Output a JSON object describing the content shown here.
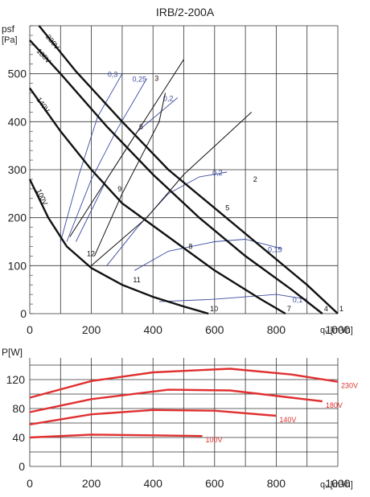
{
  "chart_data": [
    {
      "type": "line",
      "title": "IRB/2-200A",
      "ylabel_line1": "psf",
      "ylabel_line2": "[Pa]",
      "xlabel": "qᵥ [m³/h]",
      "xlim": [
        0,
        1000
      ],
      "ylim": [
        0,
        600
      ],
      "x_ticks": [
        "0",
        "200",
        "400",
        "600",
        "800",
        "1000"
      ],
      "y_ticks": [
        "0",
        "100",
        "200",
        "300",
        "400",
        "500"
      ],
      "grid": true,
      "series": [
        {
          "name": "230V",
          "points": [
            [
              30,
              600
            ],
            [
              150,
              505
            ],
            [
              300,
              400
            ],
            [
              450,
              300
            ],
            [
              600,
              220
            ],
            [
              750,
              140
            ],
            [
              900,
              60
            ],
            [
              1000,
              0
            ]
          ]
        },
        {
          "name": "180V",
          "points": [
            [
              0,
              570
            ],
            [
              100,
              500
            ],
            [
              250,
              390
            ],
            [
              400,
              290
            ],
            [
              550,
              200
            ],
            [
              700,
              120
            ],
            [
              850,
              50
            ],
            [
              950,
              0
            ]
          ]
        },
        {
          "name": "140V",
          "points": [
            [
              0,
              470
            ],
            [
              100,
              380
            ],
            [
              200,
              300
            ],
            [
              300,
              230
            ],
            [
              450,
              160
            ],
            [
              600,
              90
            ],
            [
              750,
              30
            ],
            [
              830,
              0
            ]
          ]
        },
        {
          "name": "100V",
          "points": [
            [
              0,
              280
            ],
            [
              60,
              200
            ],
            [
              120,
              140
            ],
            [
              200,
              95
            ],
            [
              300,
              60
            ],
            [
              400,
              35
            ],
            [
              500,
              15
            ],
            [
              580,
              0
            ]
          ]
        }
      ],
      "efficiency_curves": [
        {
          "label": "0,1",
          "points": [
            [
              420,
              25
            ],
            [
              600,
              30
            ],
            [
              800,
              40
            ],
            [
              900,
              30
            ]
          ]
        },
        {
          "label": "0,15",
          "points": [
            [
              340,
              90
            ],
            [
              450,
              130
            ],
            [
              600,
              150
            ],
            [
              700,
              155
            ],
            [
              820,
              135
            ]
          ]
        },
        {
          "label": "0,2",
          "points": [
            [
              250,
              100
            ],
            [
              350,
              180
            ],
            [
              450,
              250
            ],
            [
              550,
              285
            ],
            [
              640,
              295
            ]
          ]
        },
        {
          "label": "0,2",
          "points": [
            [
              150,
              150
            ],
            [
              250,
              280
            ],
            [
              350,
              380
            ],
            [
              480,
              450
            ]
          ]
        },
        {
          "label": "0,25",
          "points": [
            [
              120,
              150
            ],
            [
              200,
              280
            ],
            [
              280,
              380
            ],
            [
              380,
              490
            ]
          ]
        },
        {
          "label": "0,3",
          "points": [
            [
              100,
              150
            ],
            [
              160,
              290
            ],
            [
              220,
              410
            ],
            [
              300,
              500
            ]
          ]
        }
      ],
      "system_lines": [
        {
          "points": [
            [
              200,
              100
            ],
            [
              380,
              200
            ],
            [
              500,
              290
            ],
            [
              720,
              420
            ]
          ]
        },
        {
          "points": [
            [
              130,
              160
            ],
            [
              300,
              330
            ],
            [
              440,
              470
            ],
            [
              500,
              530
            ]
          ]
        },
        {
          "points": [
            [
              210,
              120
            ],
            [
              300,
              250
            ],
            [
              420,
              400
            ],
            [
              440,
              460
            ]
          ]
        }
      ],
      "points": [
        {
          "label": "1",
          "x": 1000,
          "y": 0
        },
        {
          "label": "2",
          "x": 720,
          "y": 270
        },
        {
          "label": "3",
          "x": 400,
          "y": 480
        },
        {
          "label": "4",
          "x": 950,
          "y": 0
        },
        {
          "label": "5",
          "x": 630,
          "y": 210
        },
        {
          "label": "6",
          "x": 350,
          "y": 380
        },
        {
          "label": "7",
          "x": 830,
          "y": 0
        },
        {
          "label": "8",
          "x": 510,
          "y": 130
        },
        {
          "label": "9",
          "x": 280,
          "y": 250
        },
        {
          "label": "10",
          "x": 580,
          "y": 0
        },
        {
          "label": "11",
          "x": 330,
          "y": 60
        },
        {
          "label": "12",
          "x": 180,
          "y": 115
        }
      ]
    },
    {
      "type": "line",
      "ylabel": "P[W]",
      "xlabel": "qᵥ [m³/h]",
      "xlim": [
        0,
        1000
      ],
      "ylim": [
        0,
        150
      ],
      "x_ticks": [
        "0",
        "200",
        "400",
        "600",
        "800",
        "1000"
      ],
      "y_ticks": [
        "0",
        "40",
        "80",
        "120"
      ],
      "grid": true,
      "series_color": "#e03030",
      "series": [
        {
          "name": "230V",
          "points": [
            [
              0,
              95
            ],
            [
              200,
              118
            ],
            [
              400,
              130
            ],
            [
              650,
              135
            ],
            [
              850,
              127
            ],
            [
              1000,
              117
            ]
          ]
        },
        {
          "name": "180V",
          "points": [
            [
              0,
              75
            ],
            [
              200,
              93
            ],
            [
              450,
              106
            ],
            [
              650,
              105
            ],
            [
              850,
              95
            ],
            [
              950,
              90
            ]
          ]
        },
        {
          "name": "140V",
          "points": [
            [
              0,
              58
            ],
            [
              200,
              72
            ],
            [
              400,
              78
            ],
            [
              600,
              77
            ],
            [
              800,
              70
            ]
          ]
        },
        {
          "name": "100V",
          "points": [
            [
              0,
              40
            ],
            [
              200,
              44
            ],
            [
              400,
              43
            ],
            [
              560,
              42
            ]
          ]
        }
      ]
    }
  ]
}
